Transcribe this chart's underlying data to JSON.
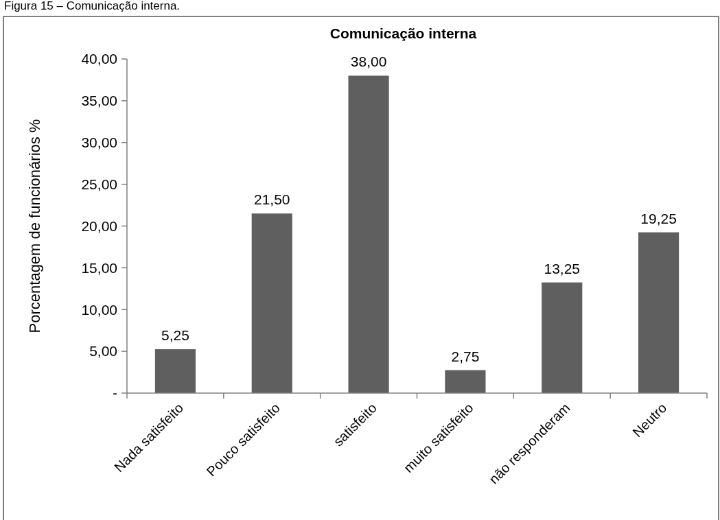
{
  "chart_data": {
    "type": "bar",
    "title": "Comunicação interna",
    "ylabel": "Porcentagem de funcionários %",
    "annotations": [
      "Figura 15 – Comunicação interna."
    ],
    "categories": [
      "Nada satisfeito",
      "Pouco satisfeito",
      "satisfeito",
      "muito satisfeito",
      "não responderam",
      "Neutro"
    ],
    "values": [
      5.25,
      21.5,
      38,
      2.75,
      13.25,
      19.25
    ],
    "value_labels": [
      "5,25",
      "21,50",
      "38,00",
      "2,75",
      "13,25",
      "19,25"
    ],
    "color": "#5f5f5f",
    "ylim": [
      0,
      40
    ],
    "yticks": [
      {
        "value": 0,
        "label": "-"
      },
      {
        "value": 5,
        "label": "5,00"
      },
      {
        "value": 10,
        "label": "10,00"
      },
      {
        "value": 15,
        "label": "15,00"
      },
      {
        "value": 20,
        "label": "20,00"
      },
      {
        "value": 25,
        "label": "25,00"
      },
      {
        "value": 30,
        "label": "30,00"
      },
      {
        "value": 35,
        "label": "35,00"
      },
      {
        "value": 40,
        "label": "40,00"
      }
    ],
    "grid": false
  }
}
